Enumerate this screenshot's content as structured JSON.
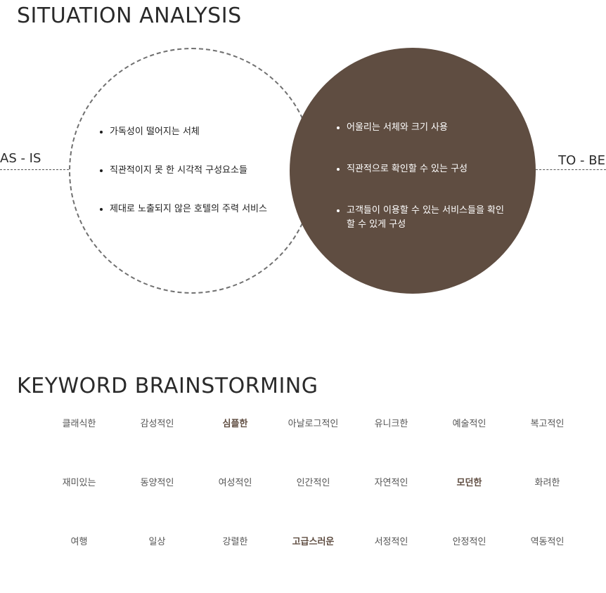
{
  "situation": {
    "title": "SITUATION ANALYSIS",
    "as_is_label": "AS - IS",
    "to_be_label": "TO - BE",
    "as_is_items": [
      "가독성이 떨어지는 서체",
      "직관적이지 못 한 시각적 구성요소들",
      "제대로 노출되지 않은 호텔의 주력 서비스"
    ],
    "to_be_items": [
      "어울리는 서체와 크기 사용",
      "직관적으로 확인할 수 있는 구성",
      "고객들이 이용할 수 있는 서비스들을 확인할 수 있게 구성"
    ],
    "accent_color": "#5f4d41"
  },
  "keywords": {
    "title": "KEYWORD BRAINSTORMING",
    "rows": [
      [
        {
          "text": "클래식한",
          "highlight": false
        },
        {
          "text": "감성적인",
          "highlight": false
        },
        {
          "text": "심플한",
          "highlight": true
        },
        {
          "text": "아날로그적인",
          "highlight": false
        },
        {
          "text": "유니크한",
          "highlight": false
        },
        {
          "text": "예술적인",
          "highlight": false
        },
        {
          "text": "복고적인",
          "highlight": false
        }
      ],
      [
        {
          "text": "재미있는",
          "highlight": false
        },
        {
          "text": "동양적인",
          "highlight": false
        },
        {
          "text": "여성적인",
          "highlight": false
        },
        {
          "text": "인간적인",
          "highlight": false
        },
        {
          "text": "자연적인",
          "highlight": false
        },
        {
          "text": "모던한",
          "highlight": true
        },
        {
          "text": "화려한",
          "highlight": false
        }
      ],
      [
        {
          "text": "여행",
          "highlight": false
        },
        {
          "text": "일상",
          "highlight": false
        },
        {
          "text": "강렬한",
          "highlight": false
        },
        {
          "text": "고급스러운",
          "highlight": true
        },
        {
          "text": "서정적인",
          "highlight": false
        },
        {
          "text": "안정적인",
          "highlight": false
        },
        {
          "text": "역동적인",
          "highlight": false
        }
      ]
    ]
  }
}
